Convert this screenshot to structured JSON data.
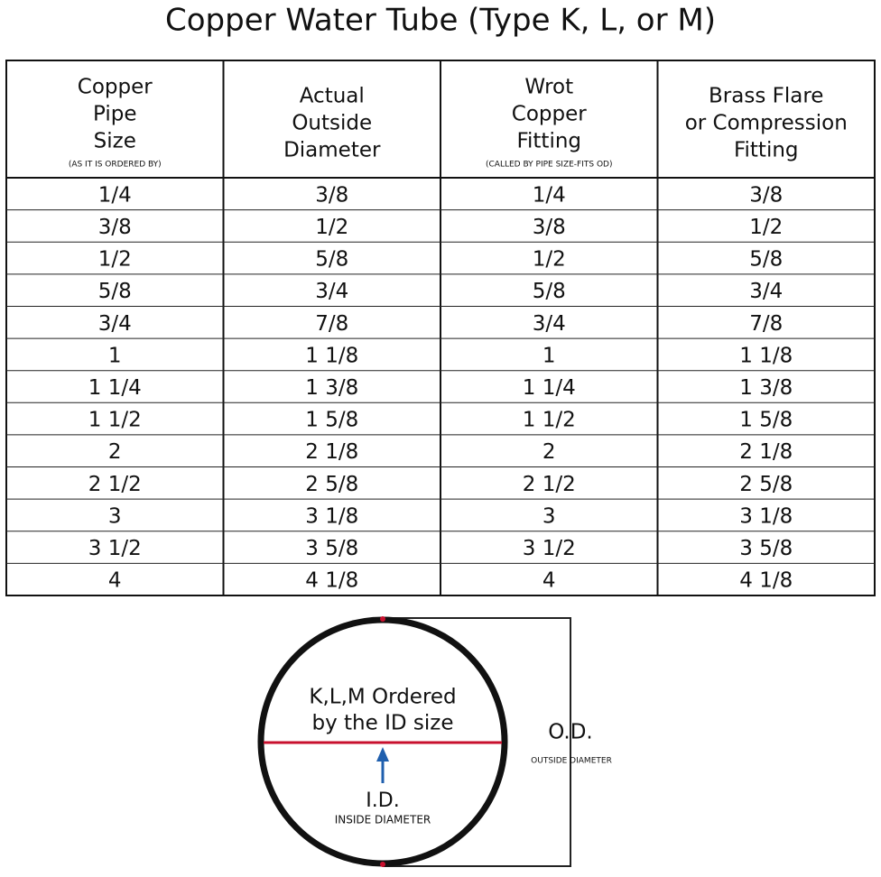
{
  "header": {
    "title": "Copper Water Tube (Type K, L, or M)"
  },
  "table": {
    "columns": [
      {
        "lines": [
          "Copper",
          "Pipe",
          "Size"
        ],
        "note": "(AS IT IS ORDERED BY)"
      },
      {
        "lines": [
          "Actual",
          "Outside",
          "Diameter"
        ]
      },
      {
        "lines": [
          "Wrot",
          "Copper",
          "Fitting"
        ],
        "note": "(CALLED BY PIPE SIZE-FITS OD)"
      },
      {
        "lines": [
          "Brass Flare",
          "or Compression",
          "Fitting"
        ]
      }
    ],
    "rows": [
      [
        "1/4",
        "3/8",
        "1/4",
        "3/8"
      ],
      [
        "3/8",
        "1/2",
        "3/8",
        "1/2"
      ],
      [
        "1/2",
        "5/8",
        "1/2",
        "5/8"
      ],
      [
        "5/8",
        "3/4",
        "5/8",
        "3/4"
      ],
      [
        "3/4",
        "7/8",
        "3/4",
        "7/8"
      ],
      [
        "1",
        "1 1/8",
        "1",
        "1 1/8"
      ],
      [
        "1 1/4",
        "1 3/8",
        "1 1/4",
        "1 3/8"
      ],
      [
        "1 1/2",
        "1 5/8",
        "1 1/2",
        "1 5/8"
      ],
      [
        "2",
        "2 1/8",
        "2",
        "2 1/8"
      ],
      [
        "2 1/2",
        "2 5/8",
        "2 1/2",
        "2 5/8"
      ],
      [
        "3",
        "3 1/8",
        "3",
        "3 1/8"
      ],
      [
        "3 1/2",
        "3 5/8",
        "3 1/2",
        "3 5/8"
      ],
      [
        "4",
        "4 1/8",
        "4",
        "4 1/8"
      ]
    ]
  },
  "diagram": {
    "inner_label": [
      "K,L,M Ordered",
      "by the ID size"
    ],
    "id_label": "I.D.",
    "id_note": "INSIDE DIAMETER",
    "od_label": "O.D.",
    "od_note": "OUTSIDE DIAMETER"
  }
}
